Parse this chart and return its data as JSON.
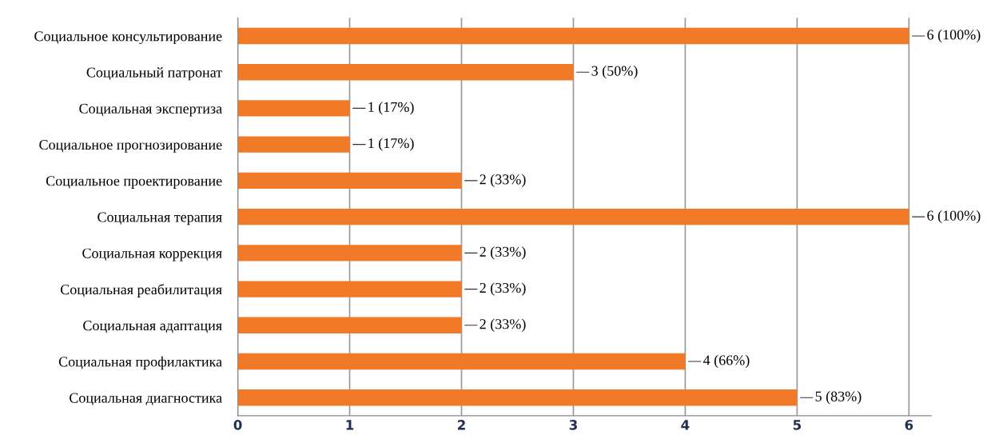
{
  "chart_data": {
    "type": "bar",
    "orientation": "horizontal",
    "categories": [
      "Социальное консультирование",
      "Социальный патронат",
      "Социальная экспертиза",
      "Социальное прогнозирование",
      "Социальное проектирование",
      "Социальная терапия",
      "Социальная коррекция",
      "Социальная реабилитация",
      "Социальная адаптация",
      "Социальная профилактика",
      "Социальная диагностика"
    ],
    "values": [
      6,
      3,
      1,
      1,
      2,
      6,
      2,
      2,
      2,
      4,
      5
    ],
    "value_labels": [
      "6 (100%)",
      "3 (50%)",
      "1 (17%)",
      "1 (17%)",
      "2 (33%)",
      "6 (100%)",
      "2 (33%)",
      "2 (33%)",
      "2 (33%)",
      "4 (66%)",
      "5 (83%)"
    ],
    "color": "#f07a28",
    "xlim": [
      0,
      6.2
    ],
    "xticks": [
      0,
      1,
      2,
      3,
      4,
      5,
      6
    ],
    "grid": "x",
    "legend": false
  }
}
